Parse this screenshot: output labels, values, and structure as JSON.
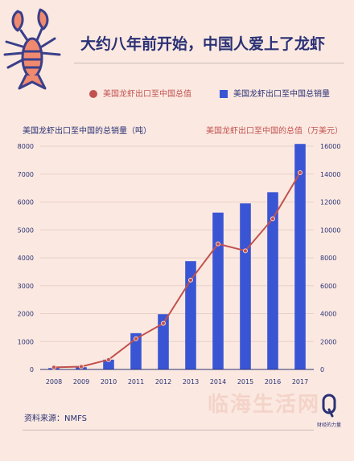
{
  "title": "大约八年前开始，中国人爱上了龙虾",
  "legend": {
    "line_label": "美国龙虾出口至中国总值",
    "bar_label": "美国龙虾出口至中国总销量"
  },
  "axis_titles": {
    "left": "美国龙虾出口至中国的总销量（吨）",
    "right": "美国龙虾出口至中国的总值（万美元）"
  },
  "colors": {
    "bar": "#3a55d4",
    "line": "#c2514e",
    "title": "#2b3175",
    "background": "#fbe9e1"
  },
  "chart_data": {
    "type": "bar+line",
    "categories": [
      "2008",
      "2009",
      "2010",
      "2011",
      "2012",
      "2013",
      "2014",
      "2015",
      "2016",
      "2017"
    ],
    "series": [
      {
        "name": "美国龙虾出口至中国总销量",
        "axis": "left",
        "values": [
          50,
          80,
          350,
          1300,
          1980,
          3880,
          5620,
          5950,
          6350,
          8080
        ]
      },
      {
        "name": "美国龙虾出口至中国总值",
        "axis": "right",
        "values": [
          150,
          200,
          700,
          2200,
          3300,
          6400,
          9000,
          8500,
          10800,
          14100
        ]
      }
    ],
    "left_ticks": [
      "0",
      "1000",
      "2000",
      "3000",
      "4000",
      "5000",
      "6000",
      "7000",
      "8000"
    ],
    "right_ticks": [
      "0",
      "2000",
      "4000",
      "6000",
      "8000",
      "10000",
      "12000",
      "14000",
      "16000"
    ],
    "ylim_left": [
      0,
      8000
    ],
    "ylim_right": [
      0,
      16000
    ]
  },
  "source": "资料来源：NMFS",
  "watermark": "临海生活网",
  "brand": "财经的力量"
}
